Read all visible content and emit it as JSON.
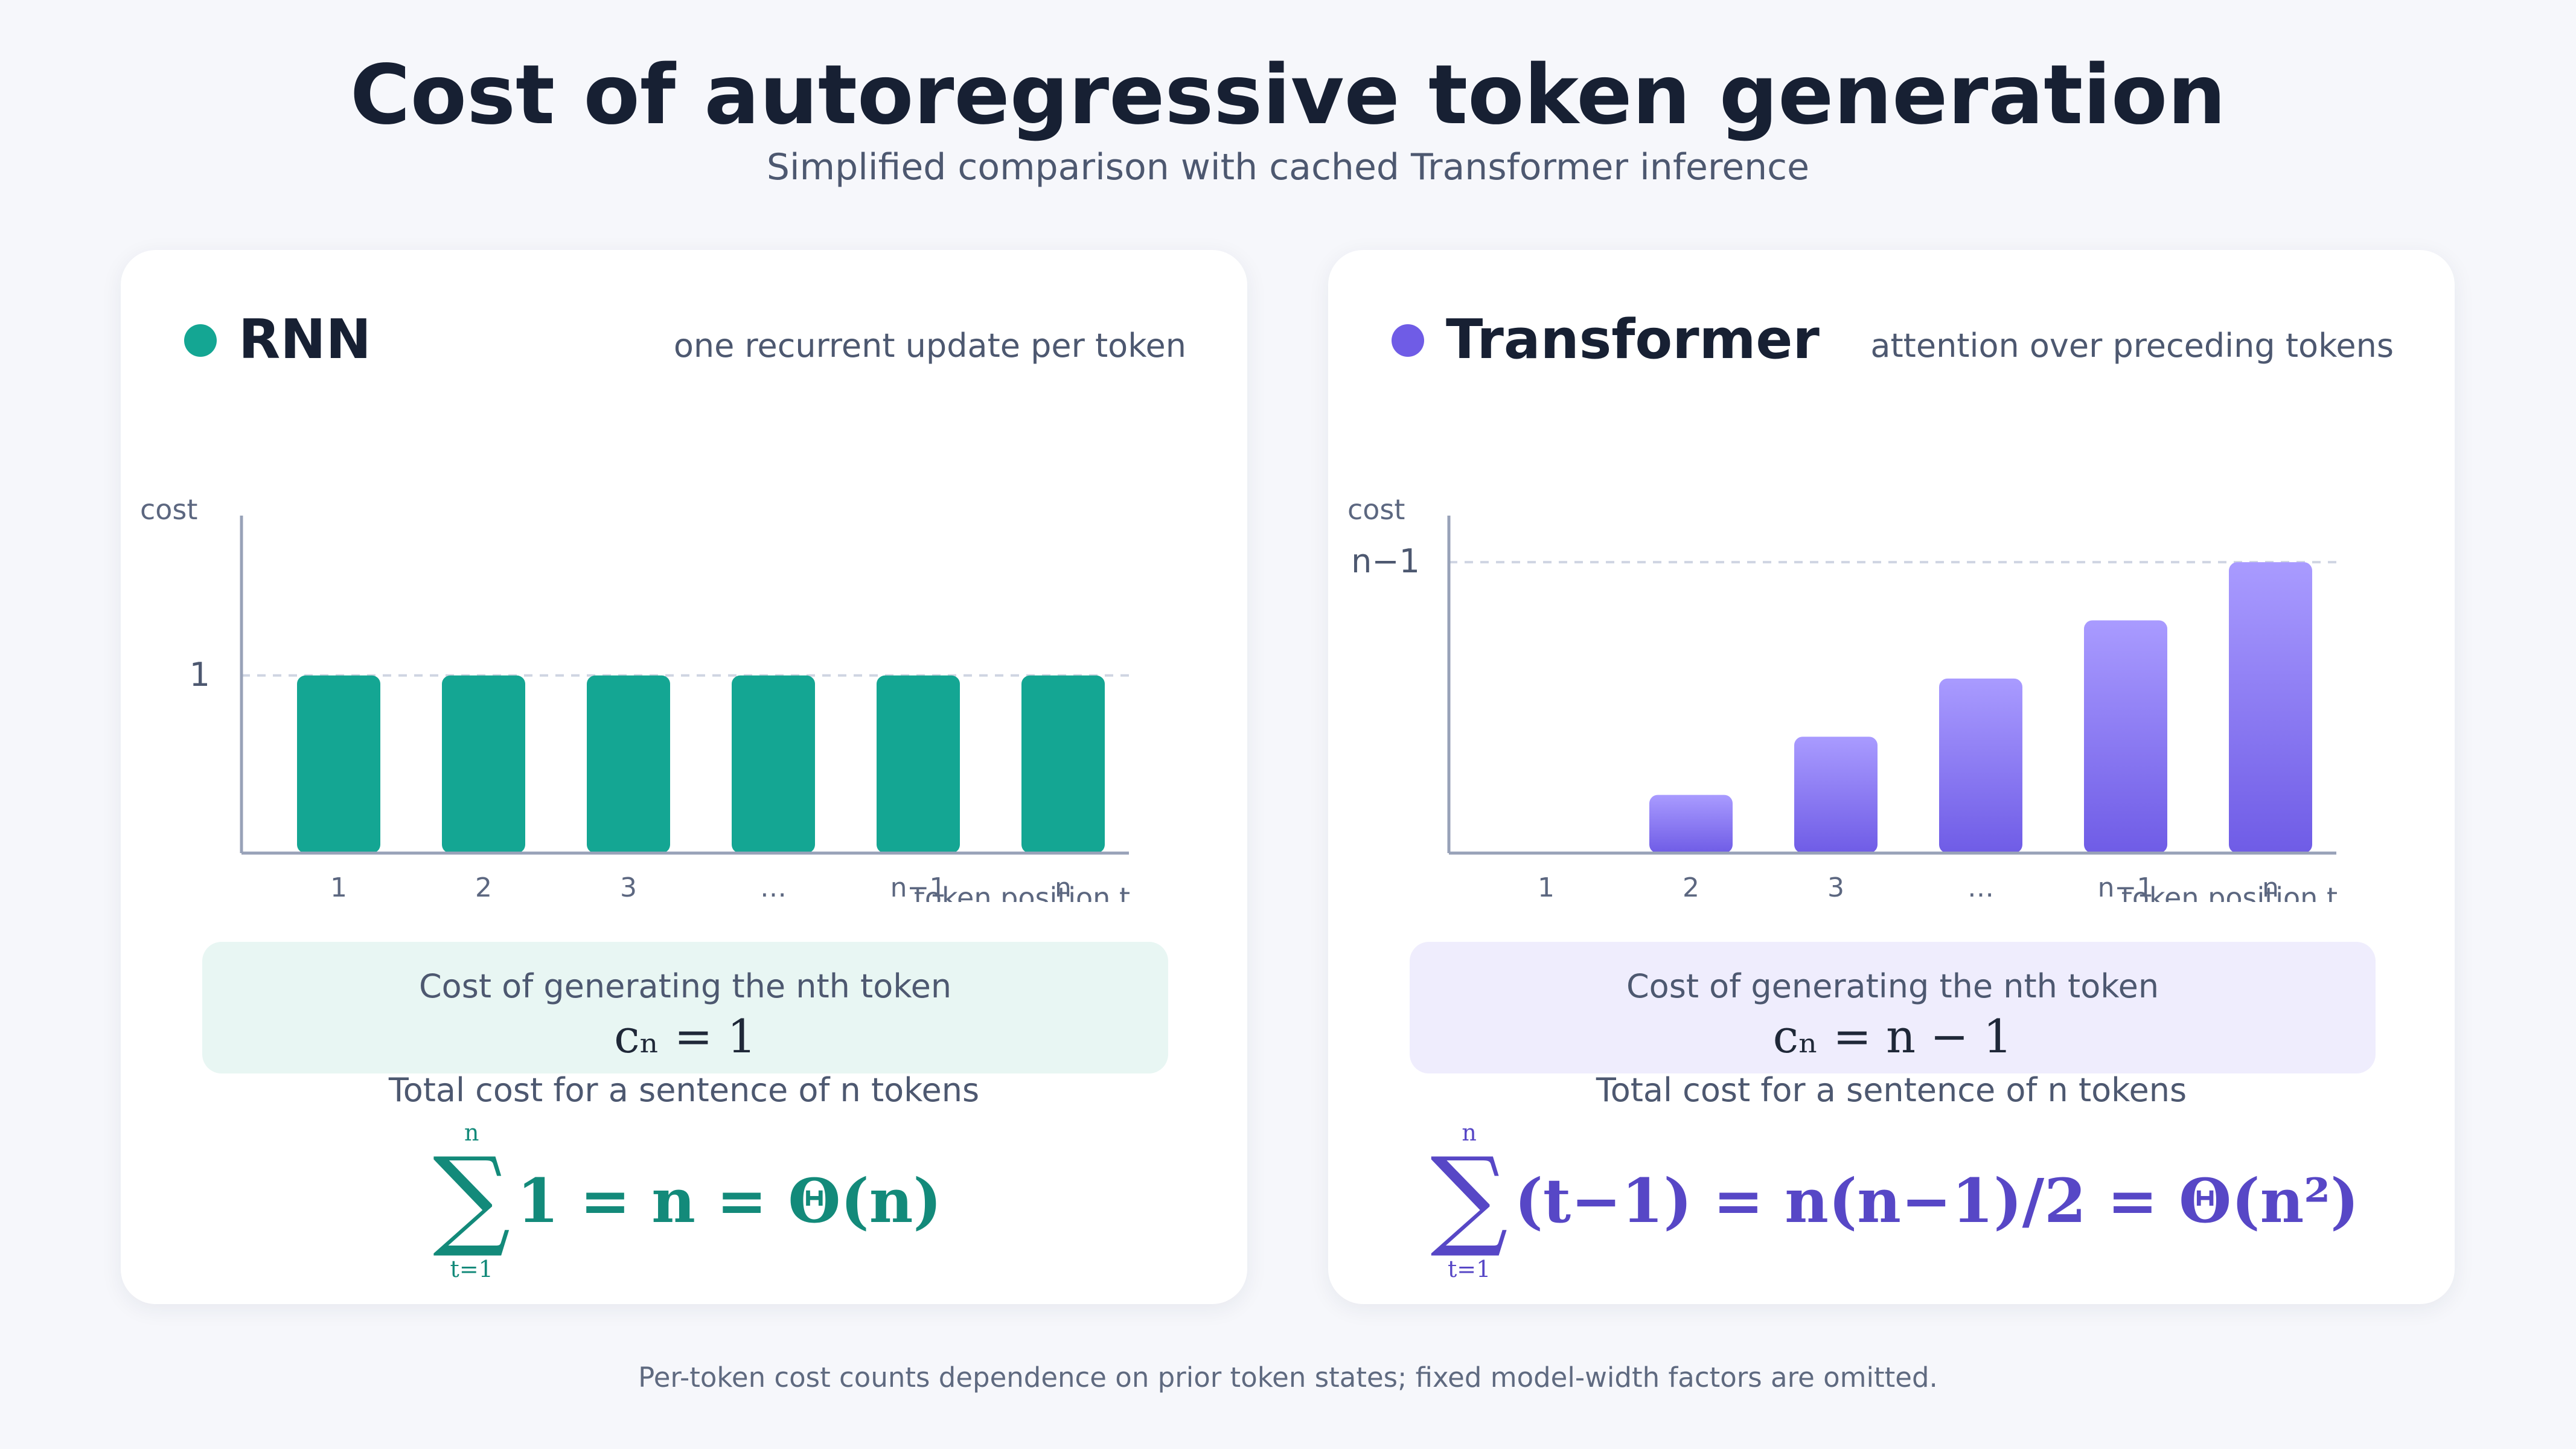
{
  "title": "Cost of autoregressive token generation",
  "subtitle": "Simplified comparison with cached Transformer inference",
  "footnote": "Per-token cost counts dependence on prior token states; fixed model-width factors are omitted.",
  "colors": {
    "rnn": "#14a693",
    "transformer_top": "#a99bff",
    "transformer_bottom": "#6f5ce6",
    "rnn_box": "#e8f6f3",
    "transformer_box": "#efedfd",
    "rnn_formula": "#138a7a",
    "transformer_formula": "#5747c6"
  },
  "panels": [
    {
      "name": "RNN",
      "description": "one recurrent update per token",
      "cost_label": "Cost of generating the nth token",
      "cost_formula": "cₙ = 1",
      "total_label": "Total cost for a sentence of n tokens",
      "sum_upper": "n",
      "sum_lower": "t=1",
      "sum_expression": "1 = n = Θ(n)"
    },
    {
      "name": "Transformer",
      "description": "attention over preceding tokens",
      "cost_label": "Cost of generating the nth token",
      "cost_formula": "cₙ = n − 1",
      "total_label": "Total cost for a sentence of n tokens",
      "sum_upper": "n",
      "sum_lower": "t=1",
      "sum_expression": "(t−1) = n(n−1)/2 = Θ(n²)"
    }
  ],
  "chart_data": [
    {
      "type": "bar",
      "categories": [
        "1",
        "2",
        "3",
        "…",
        "n−1",
        "n"
      ],
      "values": [
        1,
        1,
        1,
        1,
        1,
        1
      ],
      "xlabel": "token position t",
      "ylabel": "cost",
      "ytick_labels": [
        {
          "value": 1,
          "label": "1"
        }
      ],
      "ylim": [
        0,
        1.9
      ],
      "reference_line": 1,
      "grid": false
    },
    {
      "type": "bar",
      "categories": [
        "1",
        "2",
        "3",
        "…",
        "n−1",
        "n"
      ],
      "values": [
        0,
        1,
        2,
        3,
        4,
        5
      ],
      "xlabel": "token position t",
      "ylabel": "cost",
      "ytick_labels": [
        {
          "value": 5,
          "label": "n−1"
        }
      ],
      "ylim": [
        0,
        5.8
      ],
      "reference_line": 5,
      "grid": false
    }
  ]
}
